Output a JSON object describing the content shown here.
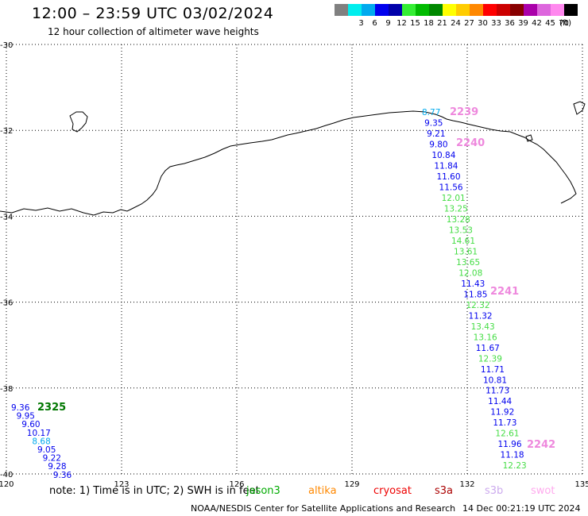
{
  "header": {
    "title": "12:00 – 23:59 UTC 03/02/2024",
    "subtitle": "12 hour collection of altimeter wave heights"
  },
  "color_scale": {
    "unit_label": "(ft)",
    "bins": [
      {
        "label": "",
        "color": "#808080"
      },
      {
        "label": "3",
        "color": "#00eeee"
      },
      {
        "label": "6",
        "color": "#00aaee"
      },
      {
        "label": "9",
        "color": "#0000ee"
      },
      {
        "label": "12",
        "color": "#0000aa"
      },
      {
        "label": "15",
        "color": "#33ee33"
      },
      {
        "label": "18",
        "color": "#00bb00"
      },
      {
        "label": "21",
        "color": "#008800"
      },
      {
        "label": "24",
        "color": "#ffff00"
      },
      {
        "label": "27",
        "color": "#ffcc00"
      },
      {
        "label": "30",
        "color": "#ff8800"
      },
      {
        "label": "33",
        "color": "#ff0000"
      },
      {
        "label": "36",
        "color": "#cc0000"
      },
      {
        "label": "39",
        "color": "#880000"
      },
      {
        "label": "42",
        "color": "#aa00aa"
      },
      {
        "label": "45",
        "color": "#dd66dd"
      },
      {
        "label": "70",
        "color": "#ff88ee"
      },
      {
        "label": "",
        "color": "#000000"
      }
    ]
  },
  "map": {
    "lat_range": [
      -40,
      -30
    ],
    "lon_range": [
      120,
      135
    ],
    "y_ticks": [
      "-30",
      "-32",
      "-34",
      "-36",
      "-38",
      "-40"
    ],
    "x_ticks": [
      "120",
      "123",
      "126",
      "129",
      "132",
      "135"
    ],
    "grid": "dotted"
  },
  "passes": [
    {
      "id": "2239",
      "color": "#ee88dd"
    },
    {
      "id": "2240",
      "color": "#ee88dd"
    },
    {
      "id": "2241",
      "color": "#ee88dd"
    },
    {
      "id": "2242",
      "color": "#ee88dd"
    },
    {
      "id": "2325",
      "color": "#007700"
    }
  ],
  "swh_track_east": [
    {
      "v": "8.77",
      "c": "#00aaee"
    },
    {
      "v": "9.35",
      "c": "#0000ee"
    },
    {
      "v": "9.21",
      "c": "#0000ee"
    },
    {
      "v": "9.80",
      "c": "#0000ee"
    },
    {
      "v": "10.84",
      "c": "#0000ee"
    },
    {
      "v": "11.84",
      "c": "#0000ee"
    },
    {
      "v": "11.60",
      "c": "#0000ee"
    },
    {
      "v": "11.56",
      "c": "#0000ee"
    },
    {
      "v": "12.01",
      "c": "#44dd44"
    },
    {
      "v": "13.25",
      "c": "#44dd44"
    },
    {
      "v": "13.28",
      "c": "#44dd44"
    },
    {
      "v": "13.53",
      "c": "#44dd44"
    },
    {
      "v": "14.61",
      "c": "#44dd44"
    },
    {
      "v": "13.61",
      "c": "#44dd44"
    },
    {
      "v": "13.65",
      "c": "#44dd44"
    },
    {
      "v": "12.08",
      "c": "#44dd44"
    },
    {
      "v": "11.43",
      "c": "#0000ee"
    },
    {
      "v": "11.85",
      "c": "#0000ee"
    },
    {
      "v": "12.32",
      "c": "#44dd44"
    },
    {
      "v": "11.32",
      "c": "#0000ee"
    },
    {
      "v": "13.43",
      "c": "#44dd44"
    },
    {
      "v": "13.16",
      "c": "#44dd44"
    },
    {
      "v": "11.67",
      "c": "#0000ee"
    },
    {
      "v": "12.39",
      "c": "#44dd44"
    },
    {
      "v": "11.71",
      "c": "#0000ee"
    },
    {
      "v": "10.81",
      "c": "#0000ee"
    },
    {
      "v": "11.73",
      "c": "#0000ee"
    },
    {
      "v": "11.44",
      "c": "#0000ee"
    },
    {
      "v": "11.92",
      "c": "#0000ee"
    },
    {
      "v": "11.73",
      "c": "#0000ee"
    },
    {
      "v": "12.61",
      "c": "#44dd44"
    },
    {
      "v": "11.96",
      "c": "#0000ee"
    },
    {
      "v": "11.18",
      "c": "#0000ee"
    },
    {
      "v": "12.23",
      "c": "#44dd44"
    }
  ],
  "swh_track_west": [
    {
      "v": "9.36",
      "c": "#0000ee"
    },
    {
      "v": "9.95",
      "c": "#0000ee"
    },
    {
      "v": "9.60",
      "c": "#0000ee"
    },
    {
      "v": "10.17",
      "c": "#0000ee"
    },
    {
      "v": "8.68",
      "c": "#00aaee"
    },
    {
      "v": "9.05",
      "c": "#0000ee"
    },
    {
      "v": "9.22",
      "c": "#0000ee"
    },
    {
      "v": "9.28",
      "c": "#0000ee"
    },
    {
      "v": "9.36",
      "c": "#0000ee"
    }
  ],
  "note": "note:  1) Time is in UTC; 2) SWH is in feet",
  "satellites": [
    {
      "name": "jason3",
      "color": "#00aa00"
    },
    {
      "name": "altika",
      "color": "#ff8800"
    },
    {
      "name": "cryosat",
      "color": "#ee0000"
    },
    {
      "name": "s3a",
      "color": "#aa0000"
    },
    {
      "name": "s3b",
      "color": "#ccaaee"
    },
    {
      "name": "swot",
      "color": "#ffaaee"
    }
  ],
  "footer": {
    "credit": "NOAA/NESDIS Center for Satellite Applications and Research",
    "timestamp": "14 Dec 00:21:19 UTC 2024"
  }
}
